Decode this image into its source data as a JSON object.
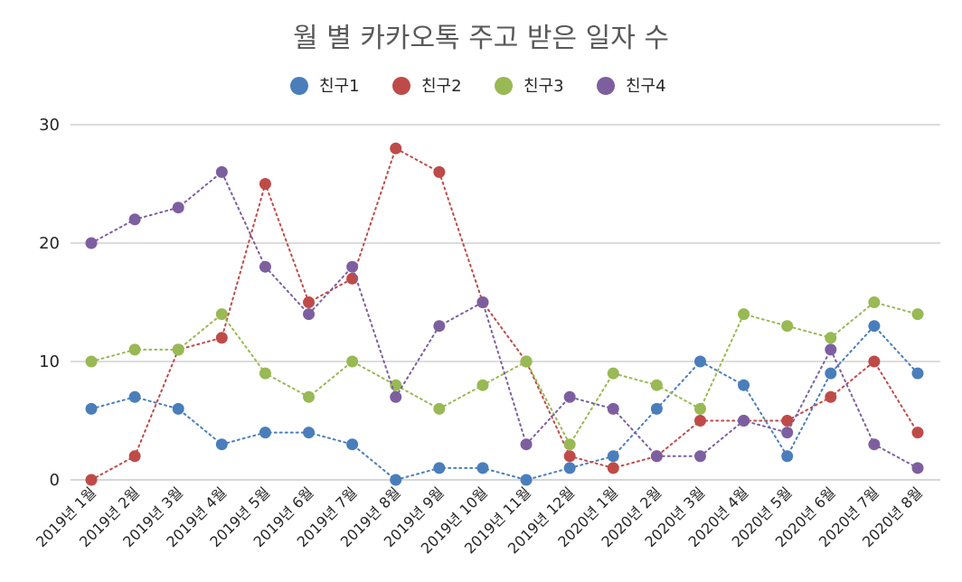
{
  "chart_data": {
    "type": "line",
    "title": "월 별 카카오톡 주고 받은 일자 수",
    "xlabel": "",
    "ylabel": "",
    "ylim": [
      0,
      30
    ],
    "yticks": [
      0,
      10,
      20,
      30
    ],
    "grid": true,
    "legend_position": "top-center",
    "categories": [
      "2019년 1월",
      "2019년 2월",
      "2019년 3월",
      "2019년 4월",
      "2019년 5월",
      "2019년 6월",
      "2019년 7월",
      "2019년 8월",
      "2019년 9월",
      "2019년 10월",
      "2019년 11월",
      "2019년 12월",
      "2020년 1월",
      "2020년 2월",
      "2020년 3월",
      "2020년 4월",
      "2020년 5월",
      "2020년 6월",
      "2020년 7월",
      "2020년 8월"
    ],
    "series": [
      {
        "name": "친구1",
        "color": "#4a7ebb",
        "values": [
          6,
          7,
          6,
          3,
          4,
          4,
          3,
          0,
          1,
          1,
          0,
          1,
          2,
          6,
          10,
          8,
          2,
          9,
          13,
          9
        ]
      },
      {
        "name": "친구2",
        "color": "#be4b48",
        "values": [
          0,
          2,
          11,
          12,
          25,
          15,
          17,
          28,
          26,
          15,
          10,
          2,
          1,
          2,
          5,
          5,
          5,
          7,
          10,
          4
        ]
      },
      {
        "name": "친구3",
        "color": "#98b954",
        "values": [
          10,
          11,
          11,
          14,
          9,
          7,
          10,
          8,
          6,
          8,
          10,
          3,
          9,
          8,
          6,
          14,
          13,
          12,
          15,
          14
        ]
      },
      {
        "name": "친구4",
        "color": "#7d5fa0",
        "values": [
          20,
          22,
          23,
          26,
          18,
          14,
          18,
          7,
          13,
          15,
          3,
          7,
          6,
          2,
          2,
          5,
          4,
          11,
          3,
          1
        ]
      }
    ]
  }
}
